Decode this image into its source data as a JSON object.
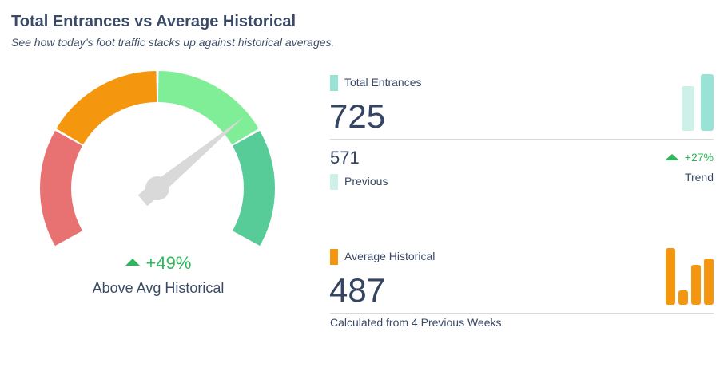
{
  "header": {
    "title": "Total Entrances vs Average Historical",
    "subtitle": "See how today’s foot traffic stacks up against historical averages."
  },
  "gauge": {
    "change": "+49%",
    "label": "Above Avg Historical",
    "needle_position": 0.71,
    "segments": [
      {
        "color": "#e87171"
      },
      {
        "color": "#f5960f"
      },
      {
        "color": "#80ed97"
      },
      {
        "color": "#57cc99"
      }
    ],
    "needle_color": "#d9d9d9"
  },
  "total": {
    "label": "Total Entrances",
    "value": "725",
    "color": "#97e3d5",
    "prev_color": "#cdf0e8",
    "previous_value": "571",
    "previous_label": "Previous",
    "trend": "+27%",
    "trend_label": "Trend",
    "bars": [
      571,
      725
    ]
  },
  "historical": {
    "label": "Average Historical",
    "value": "487",
    "color": "#f5960f",
    "note": "Calculated from 4 Previous Weeks",
    "bars": [
      100,
      26,
      70,
      81
    ]
  },
  "colors": {
    "up": "#2cb85a"
  }
}
